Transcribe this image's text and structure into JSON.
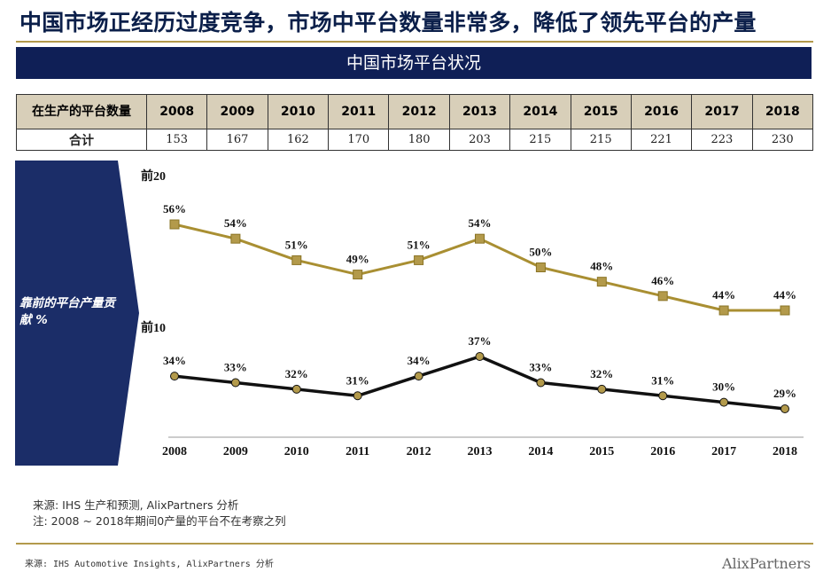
{
  "page_title": "中国市场正经历过度竞争，市场中平台数量非常多，降低了领先平台的产量",
  "banner": "中国市场平台状况",
  "table": {
    "row_label_header": "在生产的平台数量",
    "years": [
      "2008",
      "2009",
      "2010",
      "2011",
      "2012",
      "2013",
      "2014",
      "2015",
      "2016",
      "2017",
      "2018"
    ],
    "total_label": "合计",
    "totals": [
      "153",
      "167",
      "162",
      "170",
      "180",
      "203",
      "215",
      "215",
      "221",
      "223",
      "230"
    ]
  },
  "side_label": "靠前的平台产量贡献 %",
  "colors": {
    "navy": "#0f1f56",
    "gold": "#b39a4b",
    "gold_line": "#a98f32",
    "black_line": "#111111",
    "table_header": "#d8cfb9"
  },
  "chart_data": {
    "type": "line",
    "x": [
      "2008",
      "2009",
      "2010",
      "2011",
      "2012",
      "2013",
      "2014",
      "2015",
      "2016",
      "2017",
      "2018"
    ],
    "series": [
      {
        "name": "前20",
        "values": [
          56,
          54,
          51,
          49,
          51,
          54,
          50,
          48,
          46,
          44,
          44
        ],
        "labels": [
          "56%",
          "54%",
          "51%",
          "49%",
          "51%",
          "54%",
          "50%",
          "48%",
          "46%",
          "44%",
          "44%"
        ],
        "color": "#a98f32"
      },
      {
        "name": "前10",
        "values": [
          34,
          33,
          32,
          31,
          34,
          37,
          33,
          32,
          31,
          30,
          29
        ],
        "labels": [
          "34%",
          "33%",
          "32%",
          "31%",
          "34%",
          "37%",
          "33%",
          "32%",
          "31%",
          "30%",
          "29%"
        ],
        "color": "#111111"
      }
    ],
    "grid": false,
    "legend": "inline labels"
  },
  "source_line1": "来源: IHS 生产和预测, AlixPartners 分析",
  "source_line2": "注: 2008 ~ 2018年期间0产量的平台不在考察之列",
  "footer": "来源: IHS Automotive Insights, AlixPartners 分析",
  "logo_text": "AlixPartners"
}
